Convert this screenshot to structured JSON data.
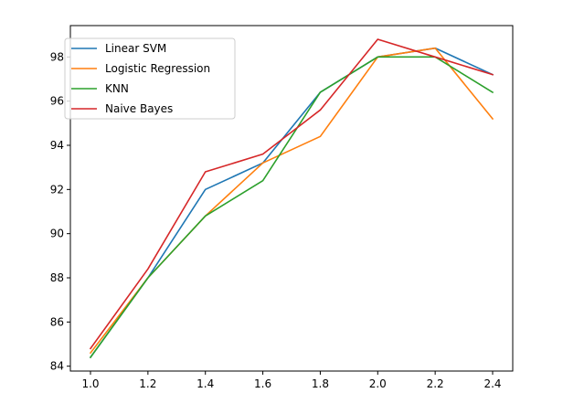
{
  "chart_data": {
    "type": "line",
    "title": "",
    "xlabel": "",
    "ylabel": "",
    "xlim": [
      0.93,
      2.47
    ],
    "ylim": [
      83.78,
      99.42
    ],
    "x": [
      1.0,
      1.2,
      1.4,
      1.6,
      1.8,
      2.0,
      2.2,
      2.4
    ],
    "x_ticks": [
      "1.0",
      "1.2",
      "1.4",
      "1.6",
      "1.8",
      "2.0",
      "2.2",
      "2.4"
    ],
    "y_ticks": [
      "84",
      "86",
      "88",
      "90",
      "92",
      "94",
      "96",
      "98"
    ],
    "grid": false,
    "legend_position": "upper-left",
    "series": [
      {
        "name": "Linear SVM",
        "color": "#1f77b4",
        "values": [
          84.4,
          88.0,
          92.0,
          93.2,
          96.4,
          98.0,
          98.4,
          97.2
        ]
      },
      {
        "name": "Logistic Regression",
        "color": "#ff7f0e",
        "values": [
          84.6,
          88.0,
          90.8,
          93.2,
          94.4,
          98.0,
          98.4,
          95.2
        ]
      },
      {
        "name": "KNN",
        "color": "#2ca02c",
        "values": [
          84.4,
          88.0,
          90.8,
          92.4,
          96.4,
          98.0,
          98.0,
          96.4
        ]
      },
      {
        "name": "Naive Bayes",
        "color": "#d62728",
        "values": [
          84.8,
          88.4,
          92.8,
          93.6,
          95.6,
          98.8,
          98.0,
          97.2
        ]
      }
    ]
  }
}
